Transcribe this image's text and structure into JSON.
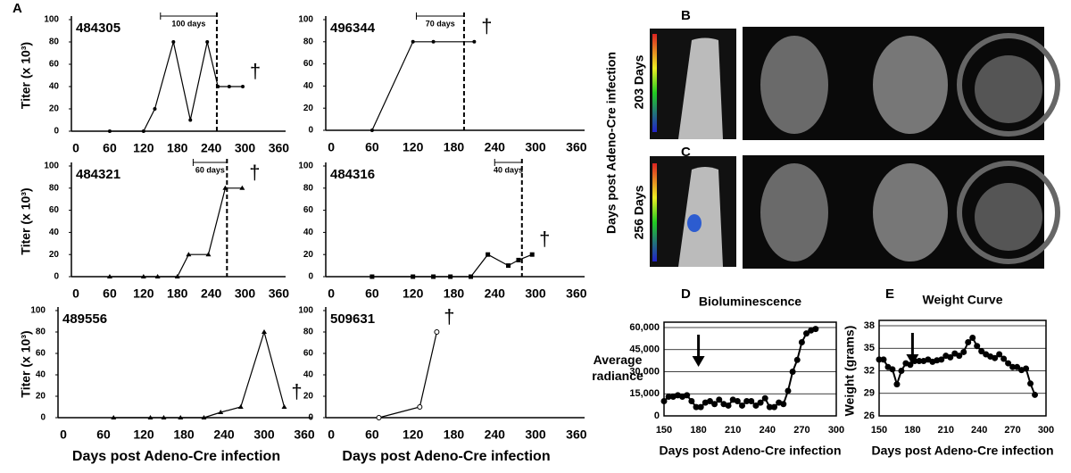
{
  "panels": {
    "a": "A",
    "b": "B",
    "c": "C",
    "d": "D",
    "e": "E"
  },
  "imaging": {
    "side_label": "Days post Adeno-Cre infection",
    "rows": [
      "203 Days",
      "256 Days"
    ]
  },
  "chart_data": [
    {
      "type": "line",
      "label": "484305",
      "ylabel": "Titer (x 10³)",
      "marker": "circle",
      "color": "#000000",
      "x": [
        60,
        120,
        140,
        173,
        203,
        233,
        252,
        272,
        296
      ],
      "values": [
        0,
        0,
        20,
        80,
        10,
        80,
        40,
        40,
        40
      ],
      "xlim": [
        -8,
        372
      ],
      "xticks": [
        0,
        60,
        120,
        180,
        240,
        300,
        360
      ],
      "ylim": [
        0,
        100
      ],
      "yticks": [
        0,
        20,
        40,
        60,
        80,
        100
      ],
      "interval": {
        "start": 150,
        "end": 250,
        "label": "100 days"
      },
      "death_marker": "†"
    },
    {
      "type": "line",
      "label": "496344",
      "marker": "circle",
      "color": "#000000",
      "x": [
        60,
        120,
        150,
        210
      ],
      "values": [
        0,
        80,
        80,
        80
      ],
      "xlim": [
        -8,
        372
      ],
      "xticks": [
        0,
        60,
        120,
        180,
        240,
        300,
        360
      ],
      "ylim": [
        0,
        100
      ],
      "yticks": [
        0,
        20,
        40,
        60,
        80,
        100
      ],
      "interval": {
        "start": 125,
        "end": 195,
        "label": "70 days"
      },
      "death_marker": "†"
    },
    {
      "type": "line",
      "label": "484321",
      "ylabel": "Titer (x 10³)",
      "marker": "triangle",
      "color": "#000000",
      "x": [
        60,
        120,
        145,
        180,
        200,
        235,
        265,
        295
      ],
      "values": [
        0,
        0,
        0,
        0,
        20,
        20,
        80,
        80
      ],
      "xlim": [
        -8,
        372
      ],
      "xticks": [
        0,
        60,
        120,
        180,
        240,
        300,
        360
      ],
      "ylim": [
        0,
        100
      ],
      "yticks": [
        0,
        20,
        40,
        60,
        80,
        100
      ],
      "interval": {
        "start": 208,
        "end": 268,
        "label": "60 days"
      },
      "death_marker": "†"
    },
    {
      "type": "line",
      "label": "484316",
      "marker": "square",
      "color": "#000000",
      "x": [
        60,
        120,
        150,
        175,
        205,
        230,
        260,
        275,
        295
      ],
      "values": [
        0,
        0,
        0,
        0,
        0,
        20,
        10,
        15,
        20
      ],
      "xlim": [
        -8,
        372
      ],
      "xticks": [
        0,
        60,
        120,
        180,
        240,
        300,
        360
      ],
      "ylim": [
        0,
        100
      ],
      "yticks": [
        0,
        20,
        40,
        60,
        80,
        100
      ],
      "interval": {
        "start": 240,
        "end": 280,
        "label": "40 days"
      },
      "death_marker": "†"
    },
    {
      "type": "line",
      "label": "489556",
      "ylabel": "Titer (x 10³)",
      "xlabel": "Days post Adeno-Cre infection",
      "marker": "triangle",
      "color": "#000000",
      "x": [
        75,
        130,
        150,
        175,
        210,
        235,
        265,
        300,
        330
      ],
      "values": [
        0,
        0,
        0,
        0,
        0,
        5,
        10,
        80,
        10
      ],
      "xlim": [
        -8,
        372
      ],
      "xticks": [
        0,
        60,
        120,
        180,
        240,
        300,
        360
      ],
      "ylim": [
        0,
        100
      ],
      "yticks": [
        0,
        20,
        40,
        60,
        80,
        100
      ],
      "death_marker": "†"
    },
    {
      "type": "line",
      "label": "509631",
      "xlabel": "Days post Adeno-Cre infection",
      "marker": "open-circle",
      "color": "#000000",
      "x": [
        70,
        130,
        155
      ],
      "values": [
        0,
        10,
        80
      ],
      "xlim": [
        -8,
        372
      ],
      "xticks": [
        0,
        60,
        120,
        180,
        240,
        300,
        360
      ],
      "ylim": [
        0,
        100
      ],
      "yticks": [
        0,
        20,
        40,
        60,
        80,
        100
      ],
      "death_marker": "†"
    },
    {
      "type": "line",
      "title": "Bioluminescence",
      "ylabel_lines": [
        "Average",
        "radiance"
      ],
      "xlabel": "Days post Adeno-Cre infection",
      "marker": "big-circle",
      "color": "#000000",
      "grid": true,
      "arrow_x": 180,
      "x": [
        150,
        154,
        158,
        162,
        166,
        170,
        174,
        178,
        182,
        186,
        190,
        194,
        198,
        202,
        206,
        210,
        214,
        218,
        222,
        226,
        230,
        234,
        238,
        242,
        246,
        250,
        254,
        258,
        262,
        266,
        270,
        274,
        278,
        282
      ],
      "values": [
        10000,
        13000,
        13000,
        14000,
        13000,
        14000,
        10000,
        6000,
        6000,
        9000,
        10000,
        8000,
        11000,
        8000,
        7000,
        11000,
        10000,
        7000,
        10000,
        10000,
        7000,
        9000,
        12000,
        6000,
        6000,
        9000,
        8000,
        17000,
        30000,
        38000,
        50000,
        56000,
        58000,
        59000
      ],
      "xlim": [
        150,
        300
      ],
      "xticks": [
        150,
        180,
        210,
        240,
        270,
        300
      ],
      "ylim": [
        0,
        60000
      ],
      "yticks": [
        0,
        {
          "value": 15000,
          "label": "15,000"
        },
        {
          "value": 30000,
          "label": "30,000"
        },
        {
          "value": 45000,
          "label": "45,000"
        },
        {
          "value": 60000,
          "label": "60,000"
        }
      ]
    },
    {
      "type": "line",
      "title": "Weight Curve",
      "ylabel": "Weight (grams)",
      "xlabel": "Days post Adeno-Cre infection",
      "marker": "big-circle",
      "color": "#000000",
      "grid": true,
      "arrow_x": 180,
      "x": [
        150,
        154,
        158,
        162,
        166,
        170,
        174,
        178,
        182,
        186,
        190,
        194,
        198,
        202,
        206,
        210,
        214,
        218,
        222,
        226,
        230,
        234,
        238,
        242,
        246,
        250,
        254,
        258,
        262,
        266,
        270,
        274,
        278,
        282,
        286,
        290
      ],
      "values": [
        33.5,
        33.5,
        32.5,
        32.2,
        30.2,
        32,
        33,
        32.8,
        33.3,
        33.3,
        33.3,
        33.5,
        33.2,
        33.4,
        33.5,
        34,
        33.8,
        34.3,
        34,
        34.5,
        35.8,
        36.4,
        35.3,
        34.6,
        34.2,
        33.9,
        33.7,
        34.2,
        33.6,
        33,
        32.5,
        32.5,
        32.1,
        32.3,
        30.3,
        28.8
      ],
      "xlim": [
        150,
        300
      ],
      "xticks": [
        150,
        180,
        210,
        240,
        270,
        300
      ],
      "ylim": [
        26,
        38
      ],
      "yticks": [
        26,
        29,
        32,
        35,
        38
      ]
    }
  ]
}
